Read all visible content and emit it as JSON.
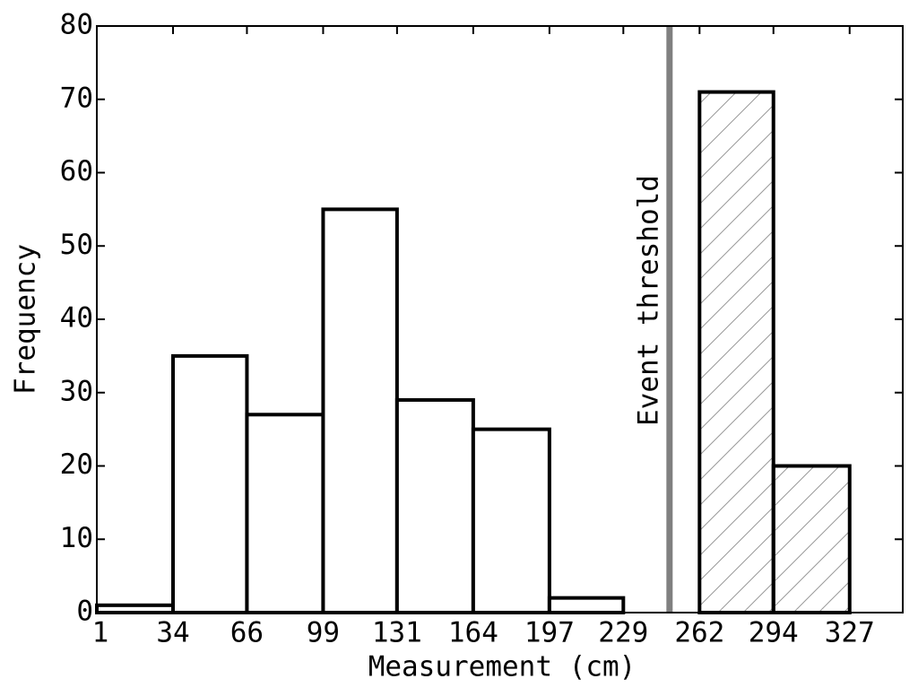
{
  "chart_data": {
    "type": "histogram",
    "xlabel": "Measurement (cm)",
    "ylabel": "Frequency",
    "bins": [
      1,
      34,
      66,
      99,
      131,
      164,
      197,
      229,
      262,
      294,
      327
    ],
    "values": [
      1,
      35,
      27,
      55,
      29,
      25,
      2,
      0,
      71,
      20
    ],
    "color": "#ffffff",
    "edgecolor": "#000000",
    "xlim": [
      1,
      350
    ],
    "xticks": [
      1,
      34,
      66,
      99,
      131,
      164,
      197,
      229,
      262,
      294,
      327
    ],
    "ylim": [
      0,
      80
    ],
    "yticks": [
      0,
      10,
      20,
      30,
      40,
      50,
      60,
      70,
      80
    ],
    "grid": false,
    "threshold": {
      "value": 249,
      "label": "Event threshold",
      "color": "#808080"
    }
  }
}
